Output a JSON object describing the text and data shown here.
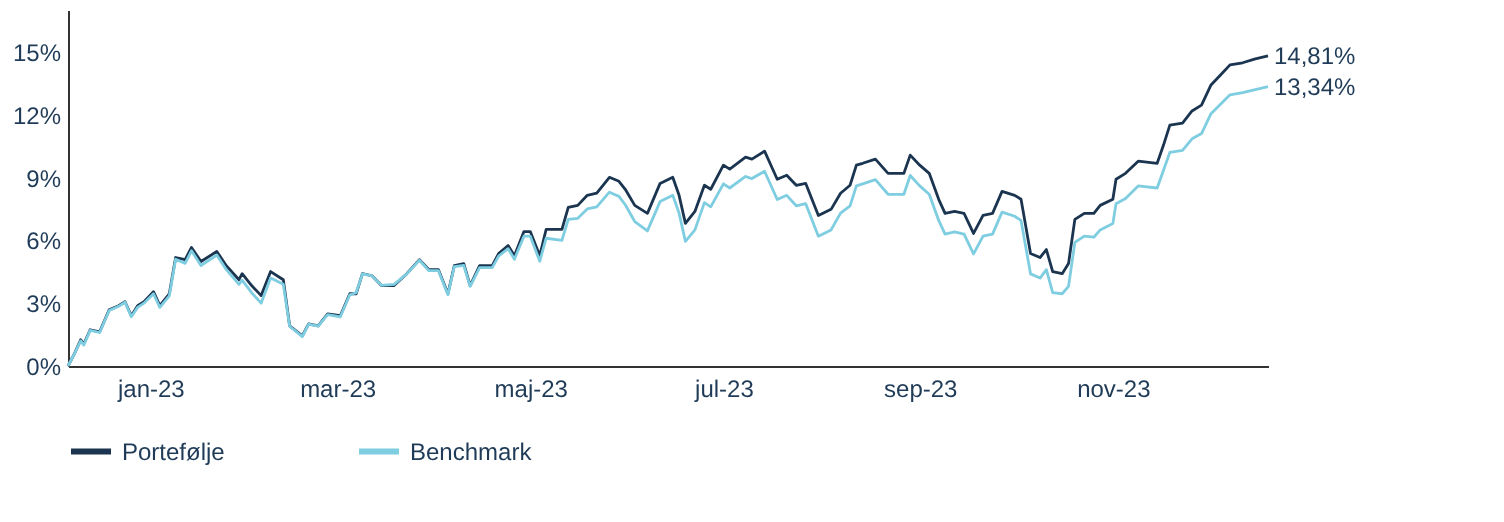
{
  "chart_data": {
    "type": "line",
    "x": [
      "2022-12-06",
      "2022-12-08",
      "2022-12-10",
      "2022-12-11",
      "2022-12-13",
      "2022-12-16",
      "2022-12-19",
      "2022-12-22",
      "2022-12-24",
      "2022-12-26",
      "2022-12-28",
      "2022-12-30",
      "2023-01-02",
      "2023-01-04",
      "2023-01-07",
      "2023-01-09",
      "2023-01-12",
      "2023-01-14",
      "2023-01-17",
      "2023-01-22",
      "2023-01-25",
      "2023-01-29",
      "2023-01-30",
      "2023-02-02",
      "2023-02-05",
      "2023-02-08",
      "2023-02-12",
      "2023-02-14",
      "2023-02-18",
      "2023-02-20",
      "2023-02-23",
      "2023-02-26",
      "2023-03-02",
      "2023-03-05",
      "2023-03-07",
      "2023-03-09",
      "2023-03-12",
      "2023-03-15",
      "2023-03-19",
      "2023-03-23",
      "2023-03-27",
      "2023-03-30",
      "2023-04-02",
      "2023-04-05",
      "2023-04-07",
      "2023-04-10",
      "2023-04-12",
      "2023-04-15",
      "2023-04-19",
      "2023-04-21",
      "2023-04-24",
      "2023-04-26",
      "2023-04-29",
      "2023-05-01",
      "2023-05-04",
      "2023-05-06",
      "2023-05-11",
      "2023-05-13",
      "2023-05-16",
      "2023-05-19",
      "2023-05-22",
      "2023-05-26",
      "2023-05-29",
      "2023-05-31",
      "2023-06-03",
      "2023-06-07",
      "2023-06-11",
      "2023-06-15",
      "2023-06-17",
      "2023-06-19",
      "2023-06-22",
      "2023-06-25",
      "2023-06-27",
      "2023-07-01",
      "2023-07-03",
      "2023-07-08",
      "2023-07-10",
      "2023-07-14",
      "2023-07-18",
      "2023-07-21",
      "2023-07-24",
      "2023-07-27",
      "2023-07-31",
      "2023-08-04",
      "2023-08-07",
      "2023-08-10",
      "2023-08-12",
      "2023-08-14",
      "2023-08-18",
      "2023-08-22",
      "2023-08-27",
      "2023-08-29",
      "2023-09-01",
      "2023-09-04",
      "2023-09-07",
      "2023-09-09",
      "2023-09-12",
      "2023-09-15",
      "2023-09-18",
      "2023-09-21",
      "2023-09-24",
      "2023-09-27",
      "2023-10-01",
      "2023-10-03",
      "2023-10-06",
      "2023-10-09",
      "2023-10-11",
      "2023-10-13",
      "2023-10-16",
      "2023-10-18",
      "2023-10-20",
      "2023-10-23",
      "2023-10-26",
      "2023-10-28",
      "2023-11-01",
      "2023-11-02",
      "2023-11-05",
      "2023-11-09",
      "2023-11-15",
      "2023-11-17",
      "2023-11-19",
      "2023-11-23",
      "2023-11-26",
      "2023-11-29",
      "2023-12-02",
      "2023-12-05",
      "2023-12-08",
      "2023-12-12",
      "2023-12-16",
      "2023-12-20"
    ],
    "series": [
      {
        "name": "Portefølje",
        "color": "#1b3550",
        "values": [
          0,
          0.58,
          1.25,
          1.05,
          1.73,
          1.63,
          2.68,
          2.88,
          3.07,
          2.4,
          2.88,
          3.07,
          3.55,
          2.88,
          3.45,
          5.18,
          5.08,
          5.66,
          4.99,
          5.47,
          4.79,
          4.12,
          4.41,
          3.84,
          3.36,
          4.51,
          4.12,
          1.92,
          1.44,
          2.01,
          1.92,
          2.49,
          2.4,
          3.45,
          3.45,
          4.41,
          4.31,
          3.84,
          3.84,
          4.41,
          5.08,
          4.6,
          4.6,
          3.45,
          4.79,
          4.89,
          3.84,
          4.79,
          4.79,
          5.37,
          5.75,
          5.27,
          6.42,
          6.42,
          5.27,
          6.52,
          6.52,
          7.57,
          7.67,
          8.15,
          8.25,
          9.01,
          8.82,
          8.44,
          7.67,
          7.29,
          8.72,
          9.01,
          8.15,
          6.81,
          7.38,
          8.63,
          8.44,
          9.59,
          9.4,
          9.97,
          9.88,
          10.26,
          8.92,
          9.11,
          8.63,
          8.72,
          7.19,
          7.48,
          8.25,
          8.63,
          9.59,
          9.68,
          9.88,
          9.2,
          9.2,
          10.07,
          9.59,
          9.2,
          7.96,
          7.29,
          7.38,
          7.29,
          6.33,
          7.19,
          7.29,
          8.34,
          8.15,
          7.96,
          5.37,
          5.18,
          5.56,
          4.51,
          4.41,
          4.89,
          7.0,
          7.29,
          7.29,
          7.67,
          7.96,
          8.92,
          9.2,
          9.78,
          9.68,
          10.55,
          11.5,
          11.6,
          12.18,
          12.46,
          13.42,
          13.9,
          14.38,
          14.48,
          14.67,
          14.81
        ]
      },
      {
        "name": "Benchmark",
        "color": "#7ecde0",
        "values": [
          0,
          0.58,
          1.2,
          1.0,
          1.7,
          1.6,
          2.65,
          2.85,
          3.05,
          2.35,
          2.8,
          3.0,
          3.45,
          2.8,
          3.35,
          5.1,
          4.9,
          5.5,
          4.8,
          5.3,
          4.6,
          3.9,
          4.1,
          3.5,
          3.0,
          4.2,
          3.9,
          1.9,
          1.4,
          2.0,
          1.9,
          2.45,
          2.35,
          3.4,
          3.5,
          4.4,
          4.3,
          3.85,
          3.9,
          4.4,
          5.05,
          4.55,
          4.55,
          3.4,
          4.75,
          4.8,
          3.8,
          4.7,
          4.7,
          5.25,
          5.6,
          5.1,
          6.2,
          6.2,
          5.0,
          6.1,
          6.0,
          7.0,
          7.05,
          7.5,
          7.6,
          8.3,
          8.1,
          7.7,
          6.9,
          6.45,
          7.85,
          8.15,
          7.3,
          5.95,
          6.5,
          7.8,
          7.6,
          8.7,
          8.5,
          9.05,
          8.95,
          9.3,
          7.95,
          8.15,
          7.65,
          7.75,
          6.2,
          6.5,
          7.3,
          7.65,
          8.6,
          8.7,
          8.9,
          8.2,
          8.2,
          9.1,
          8.6,
          8.2,
          6.95,
          6.3,
          6.4,
          6.3,
          5.35,
          6.2,
          6.3,
          7.35,
          7.15,
          6.95,
          4.4,
          4.2,
          4.6,
          3.5,
          3.45,
          3.8,
          5.9,
          6.2,
          6.15,
          6.5,
          6.8,
          7.75,
          8.0,
          8.6,
          8.5,
          9.35,
          10.2,
          10.3,
          10.85,
          11.1,
          12.05,
          12.5,
          12.95,
          13.05,
          13.2,
          13.34
        ]
      }
    ],
    "xlim": [
      "2022-12-06",
      "2023-12-20"
    ],
    "xticks": [
      {
        "value": "2023-01-01",
        "label": "jan-23"
      },
      {
        "value": "2023-03-01",
        "label": "mar-23"
      },
      {
        "value": "2023-05-01",
        "label": "maj-23"
      },
      {
        "value": "2023-07-01",
        "label": "jul-23"
      },
      {
        "value": "2023-09-01",
        "label": "sep-23"
      },
      {
        "value": "2023-11-01",
        "label": "nov-23"
      }
    ],
    "ylim": [
      0,
      17
    ],
    "yticks": [
      {
        "value": 0,
        "label": "0%"
      },
      {
        "value": 3,
        "label": "3%"
      },
      {
        "value": 6,
        "label": "6%"
      },
      {
        "value": 9,
        "label": "9%"
      },
      {
        "value": 12,
        "label": "12%"
      },
      {
        "value": 15,
        "label": "15%"
      }
    ],
    "annotations": [
      {
        "text": "14,81%",
        "x": "2023-12-20",
        "y": 14.81
      },
      {
        "text": "13,34%",
        "x": "2023-12-20",
        "y": 13.34
      }
    ],
    "legend": "bottom",
    "grid": false,
    "line_style": "solid"
  }
}
